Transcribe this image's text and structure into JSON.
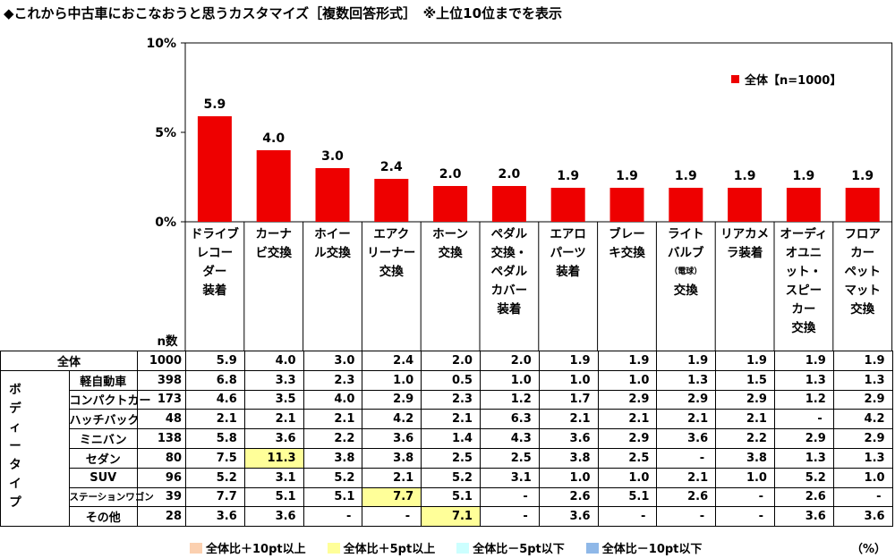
{
  "title": "◆これから中古車におこなおうと思うカスタマイズ［複数回答形式］　※上位10位までを表示",
  "legend_label": "全体【n=1000】",
  "n_header": "n数",
  "group_label": "ボディータイプ",
  "unit": "（%）",
  "bottom_legend": [
    {
      "label": "全体比＋10pt以上",
      "color": "#fbd0b0"
    },
    {
      "label": "全体比＋5pt以上",
      "color": "#ffff99"
    },
    {
      "label": "全体比－5pt以下",
      "color": "#ccffff"
    },
    {
      "label": "全体比－10pt以下",
      "color": "#8fb8e8"
    }
  ],
  "colors": {
    "bar": "#ee0000",
    "highlight_plus5": "#ffff99",
    "grid": "#000000"
  },
  "chart_data": {
    "type": "bar",
    "ylim": [
      0,
      10
    ],
    "yticks": [
      "0%",
      "5%",
      "10%"
    ],
    "categories": [
      "ドライブレコーダー装着",
      "カーナビ交換",
      "ホイール交換",
      "エアクリーナー交換",
      "ホーン交換",
      "ペダル交換・ペダルカバー装着",
      "エアロパーツ装着",
      "ブレーキ交換",
      "ライトバルブ（電球）交換",
      "リアカメラ装着",
      "オーディオユニット・スピーカー交換",
      "フロアカーペットマット交換"
    ],
    "category_lines": [
      [
        "ドライブ",
        "レコー",
        "ダー",
        "装着"
      ],
      [
        "カーナ",
        "ビ交換"
      ],
      [
        "ホイー",
        "ル交換"
      ],
      [
        "エアク",
        "リーナー",
        "交換"
      ],
      [
        "ホーン",
        "交換"
      ],
      [
        "ペダル",
        "交換・",
        "ペダル",
        "カバー",
        "装着"
      ],
      [
        "エアロ",
        "パーツ",
        "装着"
      ],
      [
        "ブレー",
        "キ交換"
      ],
      [
        "ライト",
        "バルブ",
        "（電球）",
        "交換"
      ],
      [
        "リアカメ",
        "ラ装着"
      ],
      [
        "オーディ",
        "オユニ",
        "ット・",
        "スピー",
        "カー",
        "交換"
      ],
      [
        "フロア",
        "カー",
        "ペット",
        "マット",
        "交換"
      ]
    ],
    "series": [
      {
        "name": "全体【n=1000】",
        "values": [
          5.9,
          4.0,
          3.0,
          2.4,
          2.0,
          2.0,
          1.9,
          1.9,
          1.9,
          1.9,
          1.9,
          1.9
        ]
      }
    ]
  },
  "table": {
    "rows": [
      {
        "label": "全体",
        "n": "1000",
        "values": [
          "5.9",
          "4.0",
          "3.0",
          "2.4",
          "2.0",
          "2.0",
          "1.9",
          "1.9",
          "1.9",
          "1.9",
          "1.9",
          "1.9"
        ],
        "hl": []
      },
      {
        "label": "軽自動車",
        "n": "398",
        "values": [
          "6.8",
          "3.3",
          "2.3",
          "1.0",
          "0.5",
          "1.0",
          "1.0",
          "1.0",
          "1.3",
          "1.5",
          "1.3",
          "1.3"
        ],
        "hl": []
      },
      {
        "label": "コンパクトカー",
        "n": "173",
        "values": [
          "4.6",
          "3.5",
          "4.0",
          "2.9",
          "2.3",
          "1.2",
          "1.7",
          "2.9",
          "2.9",
          "2.9",
          "1.2",
          "2.9"
        ],
        "hl": []
      },
      {
        "label": "ハッチバック",
        "n": "48",
        "values": [
          "2.1",
          "2.1",
          "2.1",
          "4.2",
          "2.1",
          "6.3",
          "2.1",
          "2.1",
          "2.1",
          "2.1",
          "-",
          "4.2"
        ],
        "hl": []
      },
      {
        "label": "ミニバン",
        "n": "138",
        "values": [
          "5.8",
          "3.6",
          "2.2",
          "3.6",
          "1.4",
          "4.3",
          "3.6",
          "2.9",
          "3.6",
          "2.2",
          "2.9",
          "2.9"
        ],
        "hl": []
      },
      {
        "label": "セダン",
        "n": "80",
        "values": [
          "7.5",
          "11.3",
          "3.8",
          "3.8",
          "2.5",
          "2.5",
          "3.8",
          "2.5",
          "-",
          "3.8",
          "1.3",
          "1.3"
        ],
        "hl": [
          1
        ]
      },
      {
        "label": "SUV",
        "n": "96",
        "values": [
          "5.2",
          "3.1",
          "5.2",
          "2.1",
          "5.2",
          "3.1",
          "1.0",
          "1.0",
          "2.1",
          "1.0",
          "5.2",
          "1.0"
        ],
        "hl": []
      },
      {
        "label": "ステーションワゴン",
        "n": "39",
        "values": [
          "7.7",
          "5.1",
          "5.1",
          "7.7",
          "5.1",
          "-",
          "2.6",
          "5.1",
          "2.6",
          "-",
          "2.6",
          "-"
        ],
        "hl": [
          3
        ]
      },
      {
        "label": "その他",
        "n": "28",
        "values": [
          "3.6",
          "3.6",
          "-",
          "-",
          "7.1",
          "-",
          "3.6",
          "-",
          "-",
          "-",
          "3.6",
          "3.6"
        ],
        "hl": [
          4
        ]
      }
    ]
  }
}
